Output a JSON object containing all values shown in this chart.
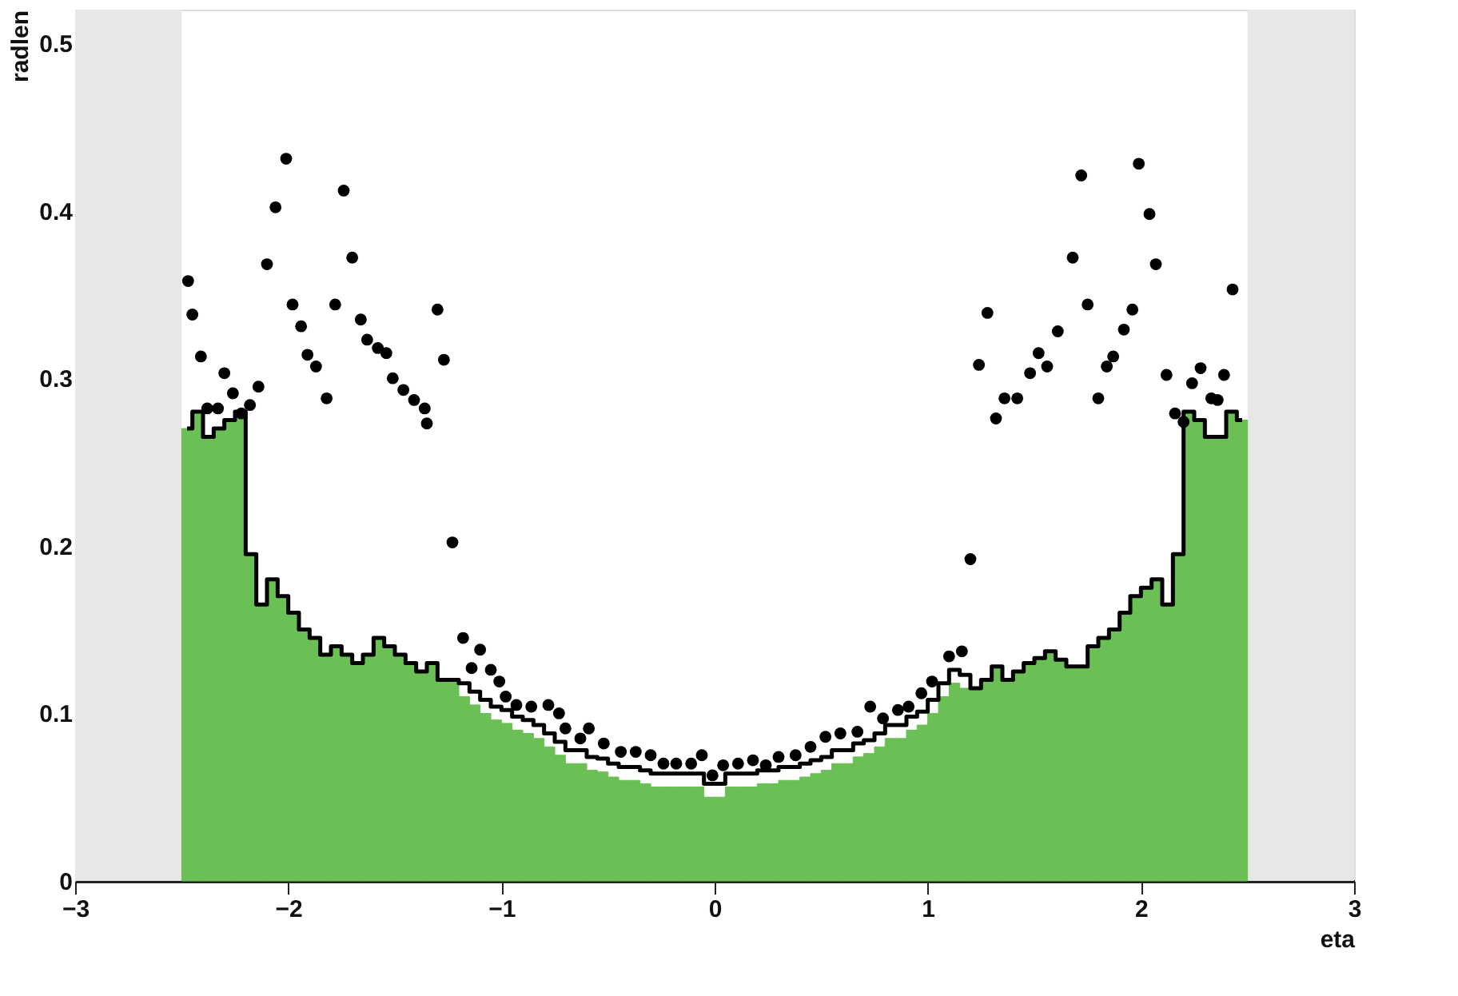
{
  "chart_data": {
    "type": "histogram",
    "xlabel": "eta",
    "ylabel": "radlen",
    "bins": [
      -2.5,
      -2.45,
      -2.4,
      -2.35,
      -2.3,
      -2.25,
      -2.2,
      -2.15,
      -2.1,
      -2.05,
      -2.0,
      -1.95,
      -1.9,
      -1.85,
      -1.8,
      -1.75,
      -1.7,
      -1.65,
      -1.6,
      -1.55,
      -1.5,
      -1.45,
      -1.4,
      -1.35,
      -1.3,
      -1.25,
      -1.2,
      -1.15,
      -1.1,
      -1.05,
      -1.0,
      -0.95,
      -0.9,
      -0.85,
      -0.8,
      -0.75,
      -0.7,
      -0.65,
      -0.6,
      -0.55,
      -0.5,
      -0.45,
      -0.4,
      -0.35,
      -0.3,
      -0.25,
      -0.2,
      -0.15,
      -0.1,
      -0.05,
      0.0,
      0.05,
      0.1,
      0.15,
      0.2,
      0.25,
      0.3,
      0.35,
      0.4,
      0.45,
      0.5,
      0.55,
      0.6,
      0.65,
      0.7,
      0.75,
      0.8,
      0.85,
      0.9,
      0.95,
      1.0,
      1.05,
      1.1,
      1.15,
      1.2,
      1.25,
      1.3,
      1.35,
      1.4,
      1.45,
      1.5,
      1.55,
      1.6,
      1.65,
      1.7,
      1.75,
      1.8,
      1.85,
      1.9,
      1.95,
      2.0,
      2.05,
      2.1,
      2.15,
      2.2,
      2.25,
      2.3,
      2.35,
      2.4,
      2.45,
      2.5
    ],
    "series": [
      {
        "color": "#6abf55",
        "values": [
          0.27,
          0.28,
          0.265,
          0.27,
          0.275,
          0.28,
          0.195,
          0.165,
          0.18,
          0.17,
          0.16,
          0.15,
          0.145,
          0.135,
          0.14,
          0.135,
          0.13,
          0.135,
          0.145,
          0.14,
          0.135,
          0.13,
          0.125,
          0.13,
          0.12,
          0.12,
          0.11,
          0.105,
          0.1,
          0.096,
          0.094,
          0.09,
          0.088,
          0.085,
          0.08,
          0.075,
          0.07,
          0.07,
          0.066,
          0.065,
          0.062,
          0.06,
          0.06,
          0.058,
          0.056,
          0.056,
          0.056,
          0.056,
          0.056,
          0.05,
          0.05,
          0.056,
          0.056,
          0.056,
          0.058,
          0.058,
          0.06,
          0.06,
          0.062,
          0.064,
          0.066,
          0.07,
          0.07,
          0.074,
          0.076,
          0.08,
          0.085,
          0.085,
          0.09,
          0.093,
          0.1,
          0.11,
          0.118,
          0.115,
          0.115,
          0.12,
          0.128,
          0.12,
          0.125,
          0.13,
          0.133,
          0.137,
          0.132,
          0.128,
          0.128,
          0.14,
          0.145,
          0.15,
          0.16,
          0.17,
          0.175,
          0.18,
          0.165,
          0.195,
          0.28,
          0.275,
          0.265,
          0.265,
          0.28,
          0.275
        ]
      },
      {
        "type": "step",
        "color": "#000000",
        "x": [
          -2.475,
          -2.425,
          -2.375,
          -2.325,
          -2.275,
          -2.225,
          -2.175,
          -2.125,
          -2.075,
          -2.025,
          -1.975,
          -1.925,
          -1.875,
          -1.825,
          -1.775,
          -1.725,
          -1.675,
          -1.625,
          -1.575,
          -1.525,
          -1.475,
          -1.425,
          -1.375,
          -1.325,
          -1.275,
          -1.225,
          -1.175,
          -1.125,
          -1.075,
          -1.025,
          -0.975,
          -0.925,
          -0.875,
          -0.825,
          -0.775,
          -0.725,
          -0.675,
          -0.625,
          -0.575,
          -0.525,
          -0.475,
          -0.425,
          -0.375,
          -0.325,
          -0.275,
          -0.225,
          -0.175,
          -0.125,
          -0.075,
          -0.025,
          0.025,
          0.075,
          0.125,
          0.175,
          0.225,
          0.275,
          0.325,
          0.375,
          0.425,
          0.475,
          0.525,
          0.575,
          0.625,
          0.675,
          0.725,
          0.775,
          0.825,
          0.875,
          0.925,
          0.975,
          1.025,
          1.075,
          1.125,
          1.175,
          1.225,
          1.275,
          1.325,
          1.375,
          1.425,
          1.475,
          1.525,
          1.575,
          1.625,
          1.675,
          1.725,
          1.775,
          1.825,
          1.875,
          1.925,
          1.975,
          2.025,
          2.075,
          2.125,
          2.175,
          2.225,
          2.275,
          2.325,
          2.375,
          2.425,
          2.475
        ],
        "values": [
          0.27,
          0.28,
          0.265,
          0.27,
          0.275,
          0.28,
          0.195,
          0.165,
          0.18,
          0.17,
          0.16,
          0.15,
          0.145,
          0.135,
          0.14,
          0.135,
          0.13,
          0.135,
          0.145,
          0.14,
          0.135,
          0.13,
          0.125,
          0.13,
          0.12,
          0.12,
          0.118,
          0.113,
          0.108,
          0.104,
          0.102,
          0.098,
          0.096,
          0.093,
          0.088,
          0.083,
          0.078,
          0.078,
          0.074,
          0.073,
          0.07,
          0.068,
          0.068,
          0.066,
          0.064,
          0.064,
          0.064,
          0.064,
          0.064,
          0.058,
          0.058,
          0.064,
          0.064,
          0.064,
          0.066,
          0.066,
          0.068,
          0.068,
          0.07,
          0.072,
          0.074,
          0.078,
          0.078,
          0.082,
          0.084,
          0.088,
          0.093,
          0.093,
          0.098,
          0.101,
          0.108,
          0.118,
          0.126,
          0.123,
          0.115,
          0.12,
          0.128,
          0.12,
          0.125,
          0.13,
          0.133,
          0.137,
          0.132,
          0.128,
          0.128,
          0.14,
          0.145,
          0.15,
          0.16,
          0.17,
          0.175,
          0.18,
          0.165,
          0.195,
          0.28,
          0.275,
          0.265,
          0.265,
          0.28,
          0.275
        ]
      },
      {
        "type": "scatter",
        "color": "#000000",
        "marker": "circle",
        "x": [
          -2.47,
          -2.45,
          -2.41,
          -2.38,
          -2.33,
          -2.3,
          -2.26,
          -2.22,
          -2.18,
          -2.14,
          -2.1,
          -2.06,
          -2.01,
          -1.98,
          -1.94,
          -1.91,
          -1.87,
          -1.82,
          -1.78,
          -1.74,
          -1.7,
          -1.66,
          -1.63,
          -1.58,
          -1.54,
          -1.51,
          -1.46,
          -1.41,
          -1.36,
          -1.35,
          -1.3,
          -1.27,
          -1.23,
          -1.18,
          -1.14,
          -1.1,
          -1.05,
          -1.01,
          -0.98,
          -0.93,
          -0.86,
          -0.78,
          -0.73,
          -0.7,
          -0.63,
          -0.59,
          -0.52,
          -0.44,
          -0.37,
          -0.3,
          -0.24,
          -0.18,
          -0.11,
          -0.06,
          -0.01,
          0.04,
          0.11,
          0.18,
          0.24,
          0.3,
          0.38,
          0.45,
          0.52,
          0.59,
          0.67,
          0.73,
          0.79,
          0.86,
          0.91,
          0.97,
          1.02,
          1.1,
          1.16,
          1.2,
          1.24,
          1.28,
          1.32,
          1.36,
          1.42,
          1.48,
          1.52,
          1.56,
          1.61,
          1.68,
          1.72,
          1.75,
          1.8,
          1.84,
          1.87,
          1.92,
          1.96,
          1.99,
          2.04,
          2.07,
          2.12,
          2.16,
          2.2,
          2.24,
          2.28,
          2.33,
          2.36,
          2.39,
          2.43
        ],
        "values": [
          0.358,
          0.338,
          0.313,
          0.282,
          0.282,
          0.303,
          0.291,
          0.279,
          0.284,
          0.295,
          0.368,
          0.402,
          0.431,
          0.344,
          0.331,
          0.314,
          0.307,
          0.288,
          0.344,
          0.412,
          0.372,
          0.335,
          0.323,
          0.318,
          0.315,
          0.3,
          0.293,
          0.287,
          0.282,
          0.273,
          0.341,
          0.311,
          0.202,
          0.145,
          0.127,
          0.138,
          0.126,
          0.119,
          0.11,
          0.105,
          0.104,
          0.105,
          0.1,
          0.091,
          0.085,
          0.091,
          0.082,
          0.077,
          0.077,
          0.075,
          0.07,
          0.07,
          0.07,
          0.075,
          0.063,
          0.069,
          0.07,
          0.072,
          0.069,
          0.074,
          0.075,
          0.08,
          0.086,
          0.088,
          0.089,
          0.104,
          0.097,
          0.102,
          0.104,
          0.112,
          0.119,
          0.134,
          0.137,
          0.192,
          0.308,
          0.339,
          0.276,
          0.288,
          0.288,
          0.303,
          0.315,
          0.307,
          0.328,
          0.372,
          0.421,
          0.344,
          0.288,
          0.307,
          0.313,
          0.329,
          0.341,
          0.428,
          0.398,
          0.368,
          0.302,
          0.279,
          0.274,
          0.297,
          0.306,
          0.288,
          0.287,
          0.302,
          0.353
        ]
      }
    ],
    "bands": [
      {
        "axis": "x",
        "from": -3,
        "to": -2.5,
        "color": "#e6e8e6"
      },
      {
        "axis": "x",
        "from": 2.5,
        "to": 3,
        "color": "#e6e8e6"
      }
    ],
    "xlim": [
      -3,
      3
    ],
    "xticks": [
      -3,
      -2,
      -1,
      0,
      1,
      2,
      3
    ],
    "ylim": [
      0,
      0.52
    ],
    "yticks": [
      0,
      0.1,
      0.2,
      0.3,
      0.4,
      0.5
    ],
    "grid": false
  }
}
